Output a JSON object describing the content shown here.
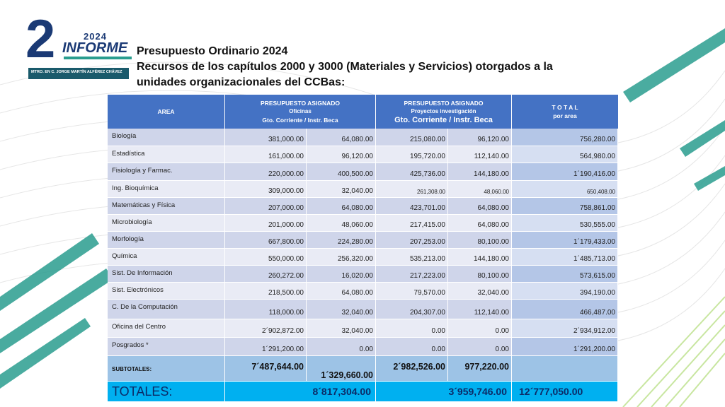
{
  "logo": {
    "number": "2",
    "year": "2024",
    "word": "INFORME",
    "author": "MTRO. EN C. JORGE MARTÍN ALFÉREZ CHÁVEZ"
  },
  "title": [
    "Presupuesto Ordinario 2024",
    "Recursos de los capítulos 2000 y 3000 (Materiales y Servicios) otorgados a la",
    "unidades organizacionales del CCBas:"
  ],
  "table": {
    "header": {
      "area": "AREA",
      "oficinas": [
        "PRESUPUESTO ASIGNADO",
        "Oficinas",
        "Gto. Corriente  /  Instr. Beca"
      ],
      "proyectos": [
        "PRESUPUESTO ASIGNADO",
        "Proyectos investigación",
        "Gto. Corriente   /   Instr. Beca"
      ],
      "total": [
        "T O T A L",
        "por area"
      ]
    },
    "rows": [
      [
        "Biología",
        "381,000.00",
        "64,080.00",
        "215,080.00",
        "96,120.00",
        "756,280.00"
      ],
      [
        "Estadística",
        "161,000.00",
        "96,120.00",
        "195,720.00",
        "112,140.00",
        "564,980.00"
      ],
      [
        "Fisiología y Farmac.",
        "220,000.00",
        "400,500.00",
        "425,736.00",
        "144,180.00",
        "1´190,416.00"
      ],
      [
        "Ing. Bioquímica",
        "309,000.00",
        "32,040.00",
        "261,308.00",
        "48,060.00",
        "650,408.00"
      ],
      [
        "Matemáticas y Física",
        "207,000.00",
        "64,080.00",
        "423,701.00",
        "64,080.00",
        "758,861.00"
      ],
      [
        "Microbiología",
        "201,000.00",
        "48,060.00",
        "217,415.00",
        "64,080.00",
        "530,555.00"
      ],
      [
        "Morfología",
        "667,800.00",
        "224,280.00",
        "207,253.00",
        "80,100.00",
        "1´179,433.00"
      ],
      [
        "Química",
        "550,000.00",
        "256,320.00",
        "535,213.00",
        "144,180.00",
        "1´485,713.00"
      ],
      [
        "Sist. De Información",
        "260,272.00",
        "16,020.00",
        "217,223.00",
        "80,100.00",
        "573,615.00"
      ],
      [
        "Sist. Electrónicos",
        "218,500.00",
        "64,080.00",
        "79,570.00",
        "32,040.00",
        "394,190.00"
      ],
      [
        "C. De la Computación",
        "118,000.00",
        "32,040.00",
        "204,307.00",
        "112,140.00",
        "466,487.00"
      ],
      [
        "Oficina del Centro",
        "2´902,872.00",
        "32,040.00",
        "0.00",
        "0.00",
        "2´934,912.00"
      ],
      [
        "Posgrados *",
        "1´291,200.00",
        "0.00",
        "0.00",
        "0.00",
        "1´291,200.00"
      ]
    ],
    "subtotals": [
      "SUBTOTALES:",
      "7´487,644.00",
      "1´329,660.00",
      "2´982,526.00",
      "977,220.00"
    ],
    "totals": [
      "TOTALES:",
      "8´817,304.00",
      "3´959,746.00",
      "12´777,050.00"
    ]
  }
}
